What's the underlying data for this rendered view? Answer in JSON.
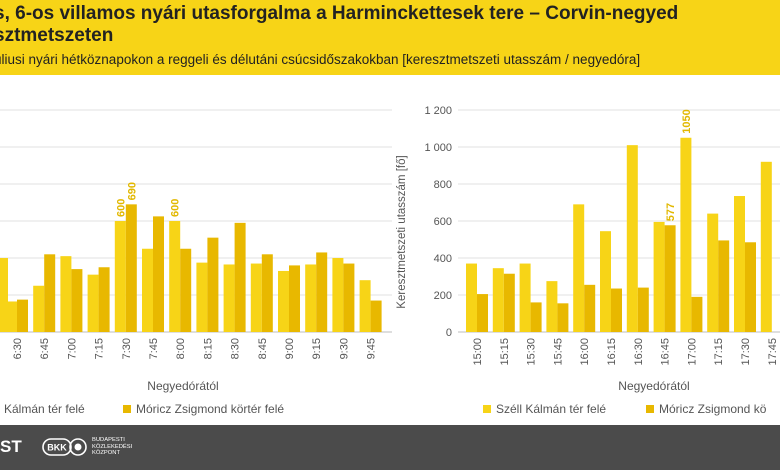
{
  "header": {
    "title_line1": "s, 6-os villamos nyári utasforgalma a Harminckettesek tere – Corvin-negyed",
    "title_line2": "sztmetszeten",
    "subtitle": "úliusi nyári hétköznapokon a reggeli és délutáni csúcsidőszakokban [keresztmetszeti utasszám / negyedóra]"
  },
  "colors": {
    "series1": "#f7d417",
    "series2": "#e8b800",
    "header_bg": "#f7d417",
    "footer_bg": "#4b4b4b"
  },
  "footer": {
    "left_text": "ST",
    "logo_text": "BKK",
    "org_line1": "BUDAPESTI",
    "org_line2": "KÖZLEKEDÉSI",
    "org_line3": "KÖZPONT"
  },
  "chart_data": [
    {
      "type": "bar",
      "categories": [
        "6:30",
        "6:45",
        "7:00",
        "7:15",
        "7:30",
        "7:45",
        "8:00",
        "8:15",
        "8:30",
        "8:45",
        "9:00",
        "9:15",
        "9:30",
        "9:45"
      ],
      "extra_leading_bar": 400,
      "series": [
        {
          "name": "Kálmán tér felé",
          "values": [
            165,
            250,
            410,
            310,
            600,
            450,
            600,
            375,
            365,
            370,
            330,
            365,
            400,
            280
          ]
        },
        {
          "name": "Móricz Zsigmond körtér felé",
          "values": [
            175,
            420,
            340,
            350,
            690,
            625,
            450,
            510,
            590,
            420,
            360,
            430,
            370,
            170
          ]
        }
      ],
      "data_labels": [
        {
          "series": 0,
          "category": "7:30",
          "text": "600"
        },
        {
          "series": 1,
          "category": "7:30",
          "text": "690"
        },
        {
          "series": 0,
          "category": "8:00",
          "text": "600"
        }
      ],
      "xlabel": "Negyedórától",
      "ylim": [
        0,
        1200
      ],
      "grid": true
    },
    {
      "type": "bar",
      "categories": [
        "15:00",
        "15:15",
        "15:30",
        "15:45",
        "16:00",
        "16:15",
        "16:30",
        "16:45",
        "17:00",
        "17:15",
        "17:30",
        "17:45"
      ],
      "series": [
        {
          "name": "Széll Kálmán tér felé",
          "values": [
            370,
            345,
            370,
            275,
            690,
            545,
            1010,
            595,
            1050,
            640,
            735,
            920
          ]
        },
        {
          "name": "Móricz Zsigmond kö",
          "values": [
            205,
            315,
            160,
            155,
            255,
            235,
            240,
            577,
            190,
            495,
            485,
            null
          ]
        }
      ],
      "data_labels": [
        {
          "series": 1,
          "category": "16:45",
          "text": "577"
        },
        {
          "series": 0,
          "category": "17:00",
          "text": "1050"
        }
      ],
      "yticks": [
        "0",
        "200",
        "400",
        "600",
        "800",
        "1 000",
        "1 200"
      ],
      "ylabel": "Keresztmetszeti utasszám [fő]",
      "xlabel": "Negyedórától",
      "ylim": [
        0,
        1200
      ],
      "grid": true
    }
  ]
}
